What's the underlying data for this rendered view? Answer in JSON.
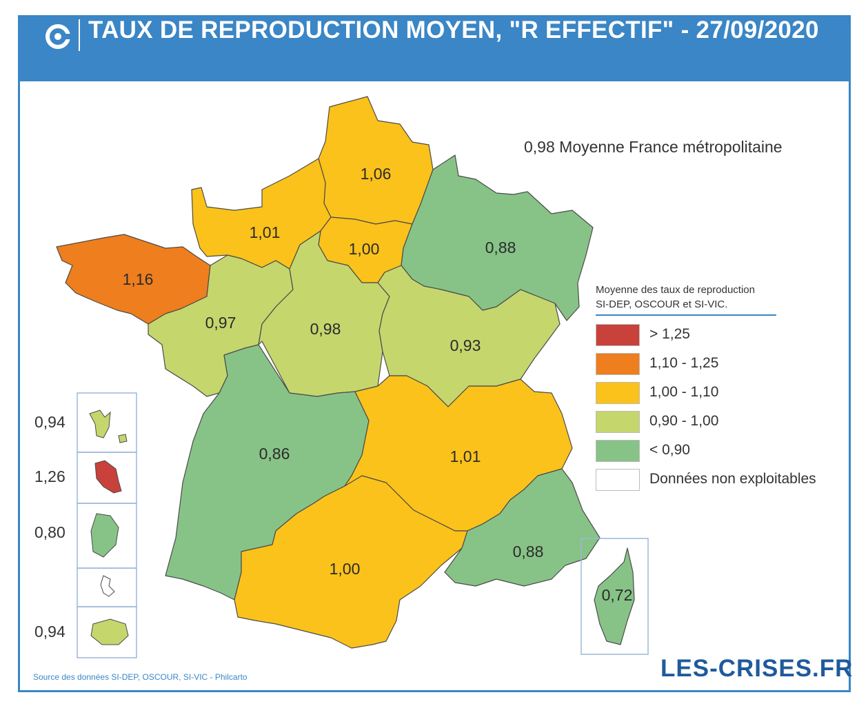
{
  "header": {
    "title": "TAUX DE REPRODUCTION MOYEN, \"R EFFECTIF\" - 27/09/2020"
  },
  "national_average": "0,98 Moyenne France métropolitaine",
  "legend": {
    "title_line1": "Moyenne des taux de reproduction",
    "title_line2": "SI-DEP, OSCOUR et SI-VIC.",
    "items": [
      {
        "label": "> 1,25",
        "color": "#c8413b"
      },
      {
        "label": "1,10 - 1,25",
        "color": "#ee7e1e"
      },
      {
        "label": "1,00 - 1,10",
        "color": "#fbc21b"
      },
      {
        "label": "0,90 - 1,00",
        "color": "#c5d66d"
      },
      {
        "label": "< 0,90",
        "color": "#87c387"
      },
      {
        "label": "Données non exploitables",
        "color": "#ffffff"
      }
    ]
  },
  "regions": [
    {
      "name": "Hauts-de-France",
      "value": "1,06",
      "color": "#fbc21b"
    },
    {
      "name": "Normandie",
      "value": "1,01",
      "color": "#fbc21b"
    },
    {
      "name": "Île-de-France",
      "value": "1,00",
      "color": "#fbc21b"
    },
    {
      "name": "Grand Est",
      "value": "0,88",
      "color": "#87c387"
    },
    {
      "name": "Bretagne",
      "value": "1,16",
      "color": "#ee7e1e"
    },
    {
      "name": "Pays de la Loire",
      "value": "0,97",
      "color": "#c5d66d"
    },
    {
      "name": "Centre-Val de Loire",
      "value": "0,98",
      "color": "#c5d66d"
    },
    {
      "name": "Bourgogne-Franche-Comté",
      "value": "0,93",
      "color": "#c5d66d"
    },
    {
      "name": "Nouvelle-Aquitaine",
      "value": "0,86",
      "color": "#87c387"
    },
    {
      "name": "Auvergne-Rhône-Alpes",
      "value": "1,01",
      "color": "#fbc21b"
    },
    {
      "name": "Occitanie",
      "value": "1,00",
      "color": "#fbc21b"
    },
    {
      "name": "Provence-Alpes-Côte d'Azur",
      "value": "0,88",
      "color": "#87c387"
    },
    {
      "name": "Corse",
      "value": "0,72",
      "color": "#87c387"
    }
  ],
  "overseas": [
    {
      "name": "Guadeloupe",
      "value": "0,94",
      "color": "#c5d66d"
    },
    {
      "name": "Martinique",
      "value": "1,26",
      "color": "#c8413b"
    },
    {
      "name": "Guyane",
      "value": "0,80",
      "color": "#87c387"
    },
    {
      "name": "Mayotte",
      "value": "",
      "color": "#ffffff"
    },
    {
      "name": "La Réunion",
      "value": "0,94",
      "color": "#c5d66d"
    }
  ],
  "footer": {
    "source": "Source des données SI-DEP, OSCOUR, SI-VIC - Philcarto",
    "logo_text": "LES-CRISES.FR"
  },
  "colors": {
    "brand_blue": "#3a86c6",
    "border": "#4a4a4a"
  }
}
